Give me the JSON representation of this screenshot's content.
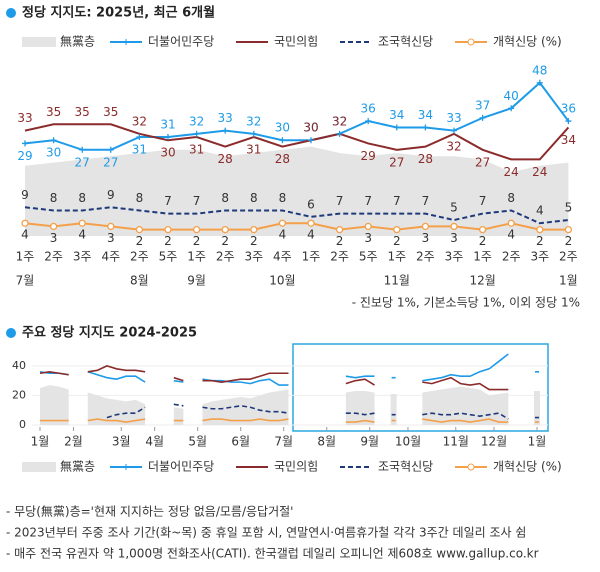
{
  "chart_data": [
    {
      "type": "line",
      "title": "정당 지지도: 2025년, 최근 6개월",
      "categories": [
        "1주",
        "2주",
        "3주",
        "4주",
        "2주",
        "5주",
        "1주",
        "2주",
        "3주",
        "4주",
        "1주",
        "2주",
        "5주",
        "1주",
        "2주",
        "3주",
        "1주",
        "2주",
        "3주",
        "2주"
      ],
      "months": [
        "7월",
        null,
        null,
        null,
        "8월",
        null,
        "9월",
        null,
        null,
        "10월",
        null,
        null,
        null,
        "11월",
        null,
        null,
        "12월",
        null,
        null,
        "1월"
      ],
      "ylim": [
        0,
        52
      ],
      "series": [
        {
          "name": "無黨층",
          "kind": "area",
          "color": "#e4e4e4",
          "values": [
            22,
            23,
            24,
            25,
            26,
            27,
            27,
            25,
            26,
            27,
            28,
            26,
            25,
            26,
            25,
            25,
            24,
            20,
            22,
            23
          ]
        },
        {
          "name": "더불어민주당",
          "kind": "line",
          "marker": "plus",
          "color": "#1e9be8",
          "values": [
            29,
            30,
            27,
            27,
            31,
            31,
            32,
            33,
            32,
            30,
            30,
            32,
            36,
            34,
            34,
            33,
            37,
            40,
            48,
            36
          ]
        },
        {
          "name": "국민의힘",
          "kind": "line",
          "color": "#8b2b2b",
          "values": [
            33,
            35,
            35,
            35,
            32,
            30,
            31,
            28,
            31,
            28,
            30,
            32,
            29,
            27,
            28,
            32,
            27,
            24,
            24,
            34
          ]
        },
        {
          "name": "조국혁신당",
          "kind": "line",
          "dash": true,
          "color": "#1f3a7a",
          "values": [
            9,
            8,
            8,
            9,
            8,
            7,
            7,
            8,
            8,
            8,
            6,
            7,
            7,
            7,
            7,
            5,
            7,
            8,
            4,
            5
          ]
        },
        {
          "name": "개혁신당 (%)",
          "kind": "line",
          "marker": "circle",
          "color": "#f4a04a",
          "values": [
            4,
            3,
            4,
            3,
            2,
            2,
            2,
            2,
            2,
            4,
            4,
            2,
            3,
            2,
            3,
            3,
            2,
            4,
            2,
            2
          ]
        }
      ],
      "note": "- 진보당 1%, 기본소득당 1%, 이외 정당 1%"
    },
    {
      "type": "line",
      "title": "주요 정당 지지도 2024-2025",
      "x": [
        0,
        1,
        2,
        3,
        4,
        5,
        6,
        7,
        8,
        9,
        10,
        11,
        12,
        13,
        14,
        15,
        16,
        17,
        18,
        19,
        20,
        21,
        22,
        23,
        24,
        25,
        26,
        27,
        28,
        29,
        30,
        31,
        32,
        33,
        34,
        35,
        36,
        37,
        38,
        39,
        40,
        41,
        42,
        43,
        44,
        45,
        46,
        47,
        48,
        49,
        50,
        51,
        52
      ],
      "xlim": [
        0,
        52
      ],
      "xticks": [
        {
          "value": 0,
          "label": "1월"
        },
        {
          "value": 3.5,
          "label": "2월"
        },
        {
          "value": 8.5,
          "label": "3월"
        },
        {
          "value": 12,
          "label": "4월"
        },
        {
          "value": 16.5,
          "label": "5월"
        },
        {
          "value": 21,
          "label": "6월"
        },
        {
          "value": 25.5,
          "label": "7월"
        },
        {
          "value": 30,
          "label": "8월"
        },
        {
          "value": 34.5,
          "label": "9월"
        },
        {
          "value": 38.5,
          "label": "10월"
        },
        {
          "value": 43.5,
          "label": "11월"
        },
        {
          "value": 47.5,
          "label": "12월"
        },
        {
          "value": 52,
          "label": "1월"
        }
      ],
      "ylim": [
        0,
        46
      ],
      "yticks": [
        0,
        20,
        40
      ],
      "grid": true,
      "series": [
        {
          "name": "無黨층",
          "kind": "area",
          "color": "#e4e4e4",
          "values": [
            25,
            27,
            26,
            24,
            null,
            22,
            20,
            18,
            17,
            16,
            17,
            14,
            null,
            null,
            12,
            11,
            null,
            14,
            16,
            17,
            18,
            19,
            18,
            20,
            22,
            23,
            24,
            null,
            null,
            null,
            null,
            null,
            22,
            23,
            23,
            22,
            null,
            21,
            null,
            null,
            22,
            23,
            24,
            25,
            26,
            25,
            24,
            20,
            21,
            22,
            null,
            null,
            23
          ]
        },
        {
          "name": "더불어민주당",
          "kind": "line",
          "color": "#1e9be8",
          "values": [
            36,
            35,
            35,
            34,
            null,
            36,
            34,
            32,
            31,
            33,
            33,
            29,
            null,
            null,
            30,
            29,
            null,
            31,
            30,
            30,
            29,
            29,
            28,
            30,
            31,
            27,
            27,
            null,
            null,
            null,
            null,
            null,
            33,
            32,
            33,
            33,
            null,
            32,
            null,
            null,
            30,
            31,
            32,
            34,
            33,
            33,
            36,
            38,
            43,
            48,
            null,
            null,
            36
          ]
        },
        {
          "name": "국민의힘",
          "kind": "line",
          "color": "#8b2b2b",
          "values": [
            35,
            36,
            35,
            34,
            null,
            36,
            37,
            40,
            38,
            37,
            37,
            36,
            null,
            null,
            32,
            30,
            null,
            30,
            30,
            29,
            30,
            31,
            31,
            33,
            35,
            35,
            35,
            null,
            null,
            null,
            null,
            null,
            28,
            30,
            31,
            27,
            null,
            null,
            null,
            null,
            29,
            28,
            30,
            32,
            28,
            27,
            28,
            24,
            24,
            24,
            null,
            null,
            null
          ]
        },
        {
          "name": "조국혁신당",
          "kind": "line",
          "dash": true,
          "color": "#1f3a7a",
          "values": [
            null,
            null,
            null,
            null,
            null,
            null,
            null,
            5,
            7,
            8,
            8,
            12,
            null,
            null,
            14,
            13,
            null,
            12,
            11,
            11,
            12,
            13,
            12,
            10,
            9,
            9,
            8,
            null,
            null,
            null,
            null,
            null,
            8,
            8,
            7,
            8,
            null,
            7,
            null,
            null,
            7,
            8,
            7,
            7,
            8,
            7,
            6,
            7,
            8,
            4,
            null,
            null,
            5
          ]
        },
        {
          "name": "개혁신당 (%)",
          "kind": "line",
          "color": "#f4a04a",
          "values": [
            3,
            3,
            3,
            3,
            null,
            3,
            4,
            3,
            3,
            2,
            3,
            4,
            null,
            null,
            3,
            3,
            null,
            3,
            4,
            4,
            3,
            3,
            3,
            4,
            3,
            3,
            4,
            null,
            null,
            null,
            null,
            null,
            2,
            2,
            3,
            2,
            null,
            3,
            null,
            null,
            4,
            3,
            2,
            3,
            3,
            2,
            3,
            4,
            2,
            2,
            null,
            null,
            2
          ]
        }
      ]
    }
  ],
  "notes": [
    "- 무당(無黨)층='현재 지지하는 정당 없음/모름/응답거절'",
    "- 2023년부터 주중 조사 기간(화~목) 중 휴일 포함 시, 연말연시·여름휴가철 각각 3주간 데일리 조사 쉼",
    "- 매주 전국 유권자 약 1,000명 전화조사(CATI). 한국갤럽 데일리 오피니언 제608호 www.gallup.co.kr"
  ]
}
